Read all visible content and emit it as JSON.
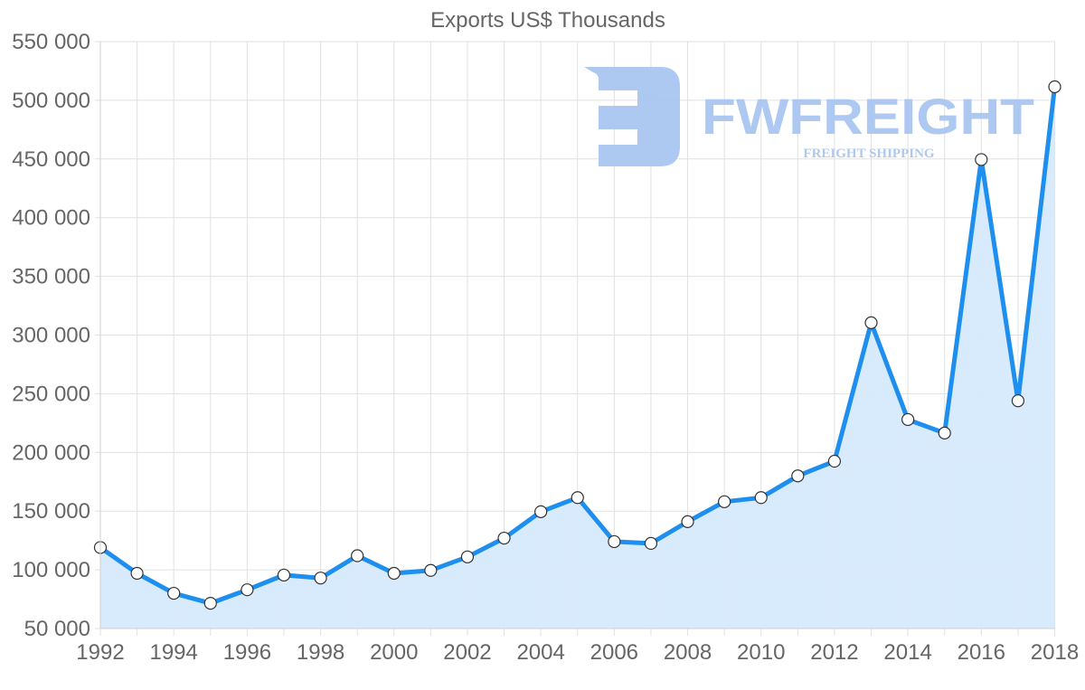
{
  "chart_data": {
    "type": "area",
    "title": "Exports US$ Thousands",
    "xlabel": "",
    "ylabel": "",
    "x": [
      1992,
      1993,
      1994,
      1995,
      1996,
      1997,
      1998,
      1999,
      2000,
      2001,
      2002,
      2003,
      2004,
      2005,
      2006,
      2007,
      2008,
      2009,
      2010,
      2011,
      2012,
      2013,
      2014,
      2015,
      2016,
      2017,
      2018
    ],
    "series": [
      {
        "name": "Exports US$ Thousands",
        "values": [
          119000,
          97000,
          80000,
          71500,
          83000,
          95500,
          93000,
          112000,
          97000,
          99500,
          111000,
          127000,
          149500,
          161500,
          124000,
          122500,
          141000,
          158000,
          161500,
          180000,
          192500,
          310500,
          228000,
          216500,
          449500,
          244000,
          511500
        ]
      }
    ],
    "ylim": [
      50000,
      550000
    ],
    "y_ticks": [
      "550 000",
      "500 000",
      "450 000",
      "400 000",
      "350 000",
      "300 000",
      "250 000",
      "200 000",
      "150 000",
      "100 000",
      "50 000"
    ],
    "x_tick_labels": [
      "1992",
      "1994",
      "1996",
      "1998",
      "2000",
      "2002",
      "2004",
      "2006",
      "2008",
      "2010",
      "2012",
      "2014",
      "2016",
      "2018"
    ],
    "grid": true,
    "legend": null,
    "colors": {
      "line": "#1e8fef",
      "fill": "#d6eafd",
      "point_fill": "#ffffff",
      "point_stroke": "#333333"
    }
  },
  "watermark": {
    "brand": "FWFREIGHT",
    "tagline": "FREIGHT SHIPPING",
    "color": "#a9c6f1"
  }
}
